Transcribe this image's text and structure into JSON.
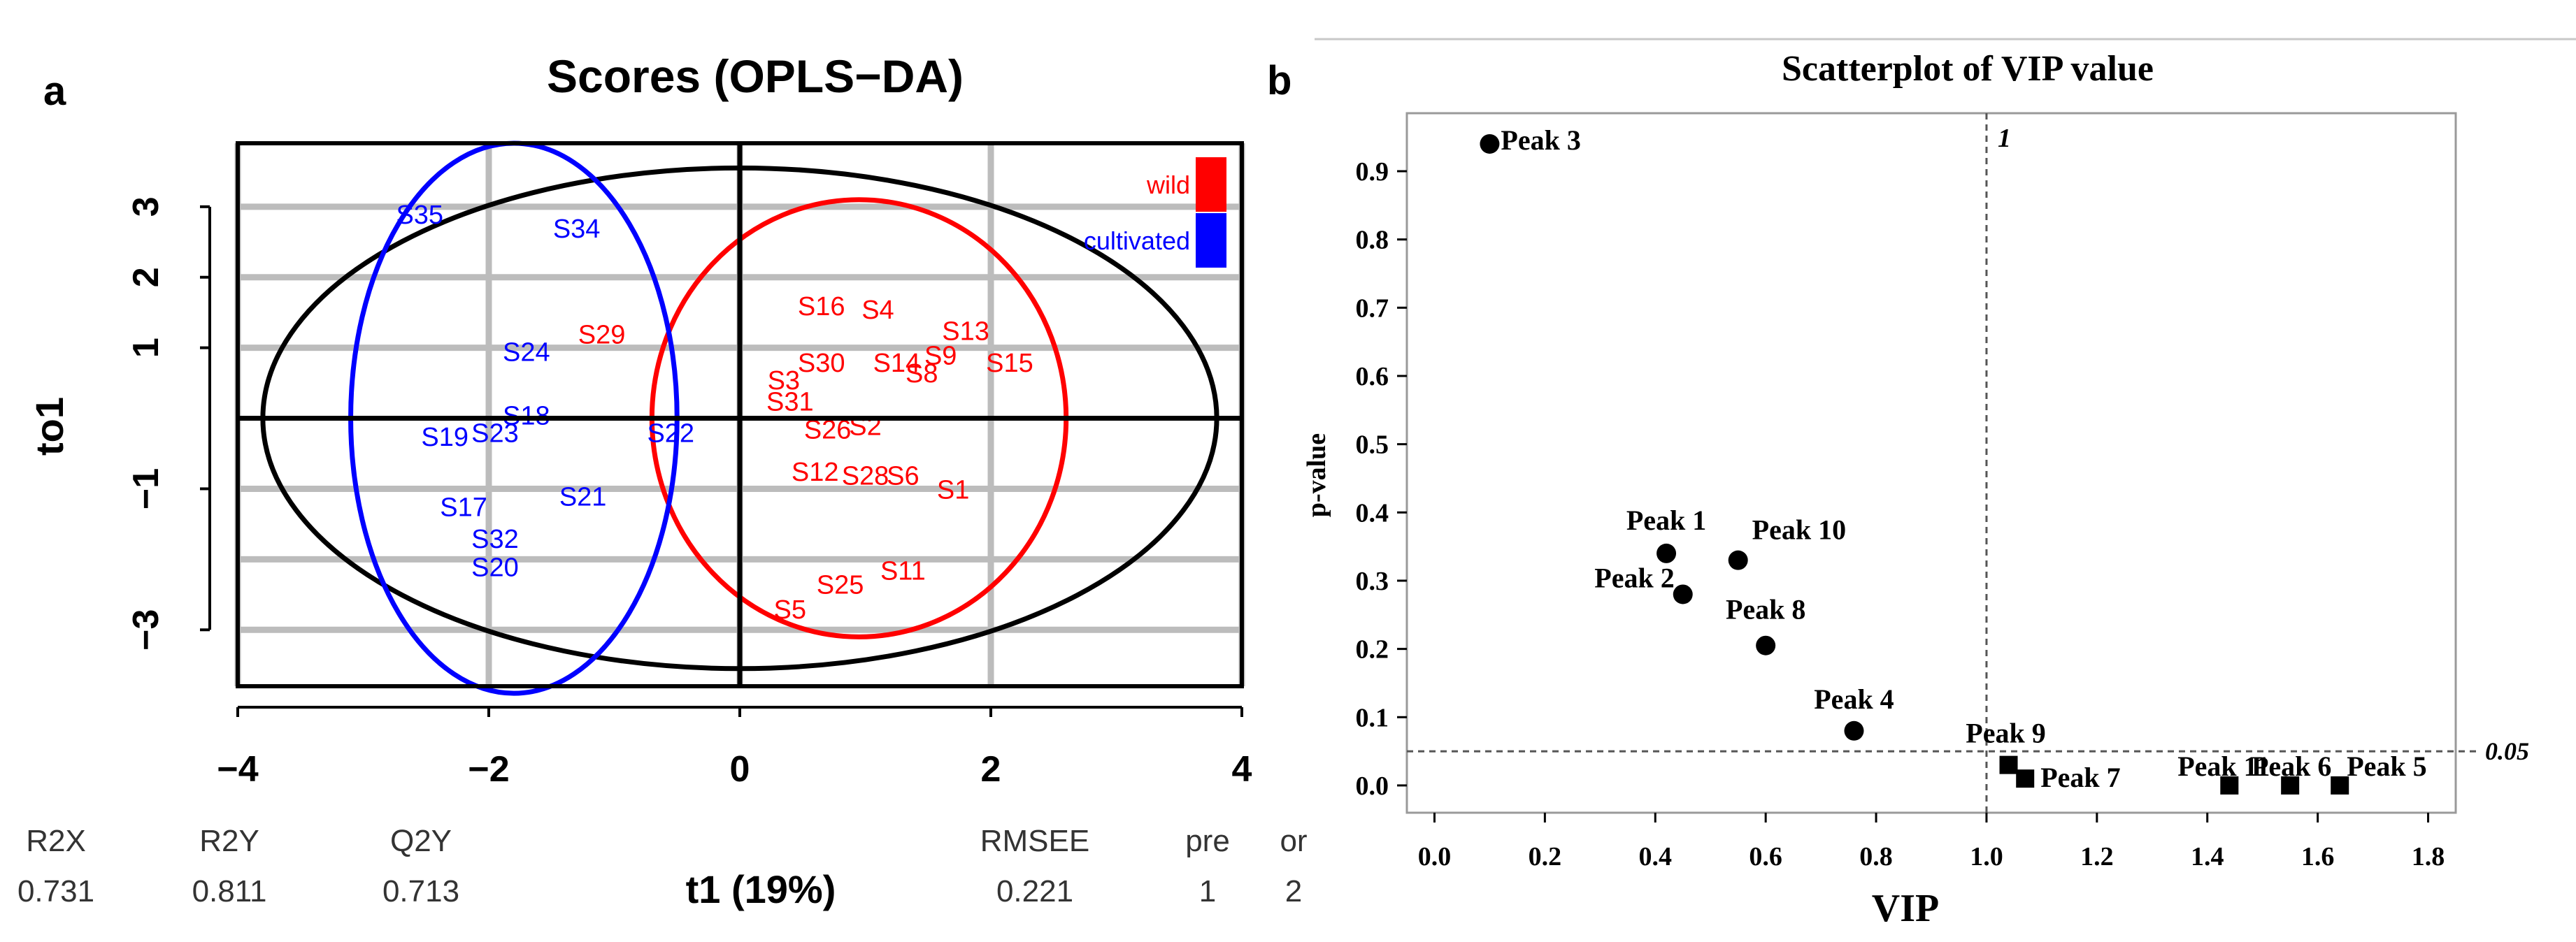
{
  "panel_a": {
    "letter": "a"
  },
  "panel_b": {
    "letter": "b"
  },
  "chart_data": [
    {
      "type": "scatter",
      "title": "Scores (OPLS−DA)",
      "xlabel": "t1 (19%)",
      "ylabel": "to1",
      "xlim": [
        -4,
        4
      ],
      "ylim": [
        -3.8,
        3.9
      ],
      "xticks": [
        -4,
        -2,
        0,
        2,
        4
      ],
      "xtick_labels": [
        "−4",
        "−2",
        "0",
        "2",
        "4"
      ],
      "yticks": [
        3,
        2,
        1,
        -1,
        -3
      ],
      "ytick_labels": [
        "3",
        "2",
        "1",
        "−1",
        "−3"
      ],
      "grid": true,
      "legend": [
        {
          "label": "wild",
          "color": "#ff0000"
        },
        {
          "label": "cultivated",
          "color": "#0000ff"
        }
      ],
      "groups": [
        {
          "name": "wild",
          "color": "#ff0000",
          "points": [
            {
              "label": "S29",
              "x": -1.1,
              "y": 1.2
            },
            {
              "label": "S16",
              "x": 0.65,
              "y": 1.6
            },
            {
              "label": "S4",
              "x": 1.1,
              "y": 1.55
            },
            {
              "label": "S13",
              "x": 1.8,
              "y": 1.25
            },
            {
              "label": "S30",
              "x": 0.65,
              "y": 0.8
            },
            {
              "label": "S14",
              "x": 1.25,
              "y": 0.8
            },
            {
              "label": "S9",
              "x": 1.6,
              "y": 0.9
            },
            {
              "label": "S8",
              "x": 1.45,
              "y": 0.65
            },
            {
              "label": "S15",
              "x": 2.15,
              "y": 0.8
            },
            {
              "label": "S3",
              "x": 0.35,
              "y": 0.55
            },
            {
              "label": "S31",
              "x": 0.4,
              "y": 0.25
            },
            {
              "label": "S2",
              "x": 1.0,
              "y": -0.1
            },
            {
              "label": "S26",
              "x": 0.7,
              "y": -0.15
            },
            {
              "label": "S12",
              "x": 0.6,
              "y": -0.75
            },
            {
              "label": "S28",
              "x": 1.0,
              "y": -0.8
            },
            {
              "label": "S6",
              "x": 1.3,
              "y": -0.8
            },
            {
              "label": "S1",
              "x": 1.7,
              "y": -1.0
            },
            {
              "label": "S11",
              "x": 1.3,
              "y": -2.15
            },
            {
              "label": "S25",
              "x": 0.8,
              "y": -2.35
            },
            {
              "label": "S5",
              "x": 0.4,
              "y": -2.7
            }
          ]
        },
        {
          "name": "cultivated",
          "color": "#0000ff",
          "points": [
            {
              "label": "S35",
              "x": -2.55,
              "y": 2.9
            },
            {
              "label": "S34",
              "x": -1.3,
              "y": 2.7
            },
            {
              "label": "S24",
              "x": -1.7,
              "y": 0.95
            },
            {
              "label": "S18",
              "x": -1.7,
              "y": 0.05
            },
            {
              "label": "S23",
              "x": -1.95,
              "y": -0.2
            },
            {
              "label": "S19",
              "x": -2.35,
              "y": -0.25
            },
            {
              "label": "S22",
              "x": -0.55,
              "y": -0.2
            },
            {
              "label": "S21",
              "x": -1.25,
              "y": -1.1
            },
            {
              "label": "S17",
              "x": -2.2,
              "y": -1.25
            },
            {
              "label": "S32",
              "x": -1.95,
              "y": -1.7
            },
            {
              "label": "S20",
              "x": -1.95,
              "y": -2.1
            }
          ]
        }
      ],
      "ellipses": [
        {
          "name": "confidence",
          "color": "#000000",
          "cx": 0,
          "cy": 0,
          "rx": 3.8,
          "ry": 3.55
        },
        {
          "name": "wild",
          "color": "#ff0000",
          "cx": 0.95,
          "cy": 0,
          "rx": 1.65,
          "ry": 3.1
        },
        {
          "name": "cultivated",
          "color": "#0000ff",
          "cx": -1.8,
          "cy": 0,
          "rx": 1.3,
          "ry": 3.9
        }
      ],
      "zero_lines": true,
      "stats": {
        "headers": [
          "R2X",
          "R2Y",
          "Q2Y",
          "RMSEE",
          "pre",
          "or"
        ],
        "values": [
          "0.731",
          "0.811",
          "0.713",
          "0.221",
          "1",
          "2"
        ]
      }
    },
    {
      "type": "scatter",
      "title": "Scatterplot of VIP value",
      "xlabel": "VIP",
      "ylabel": "p-value",
      "xlim": [
        -0.05,
        1.85
      ],
      "ylim": [
        -0.04,
        0.985
      ],
      "xticks": [
        0.0,
        0.2,
        0.4,
        0.6,
        0.8,
        1.0,
        1.2,
        1.4,
        1.6,
        1.8
      ],
      "xtick_labels": [
        "0.0",
        "0.2",
        "0.4",
        "0.6",
        "0.8",
        "1.0",
        "1.2",
        "1.4",
        "1.6",
        "1.8"
      ],
      "yticks": [
        0.0,
        0.1,
        0.2,
        0.3,
        0.4,
        0.5,
        0.6,
        0.7,
        0.8,
        0.9
      ],
      "ytick_labels": [
        "0.0",
        "0.1",
        "0.2",
        "0.3",
        "0.4",
        "0.5",
        "0.6",
        "0.7",
        "0.8",
        "0.9"
      ],
      "reference_lines": [
        {
          "axis": "x",
          "value": 1.0,
          "label": "1"
        },
        {
          "axis": "y",
          "value": 0.05,
          "label": "0.05"
        }
      ],
      "points": [
        {
          "label": "Peak 3",
          "x": 0.1,
          "y": 0.94,
          "marker": "circle"
        },
        {
          "label": "Peak 1",
          "x": 0.42,
          "y": 0.34,
          "marker": "circle"
        },
        {
          "label": "Peak 2",
          "x": 0.45,
          "y": 0.28,
          "marker": "circle"
        },
        {
          "label": "Peak 10",
          "x": 0.55,
          "y": 0.33,
          "marker": "circle"
        },
        {
          "label": "Peak 8",
          "x": 0.6,
          "y": 0.205,
          "marker": "circle"
        },
        {
          "label": "Peak 4",
          "x": 0.76,
          "y": 0.08,
          "marker": "circle"
        },
        {
          "label": "Peak 9",
          "x": 1.04,
          "y": 0.03,
          "marker": "square"
        },
        {
          "label": "Peak 7",
          "x": 1.07,
          "y": 0.01,
          "marker": "square"
        },
        {
          "label": "Peak 11",
          "x": 1.44,
          "y": 0.0,
          "marker": "square"
        },
        {
          "label": "Peak 6",
          "x": 1.55,
          "y": 0.0,
          "marker": "square"
        },
        {
          "label": "Peak 5",
          "x": 1.64,
          "y": 0.0,
          "marker": "square"
        }
      ]
    }
  ]
}
